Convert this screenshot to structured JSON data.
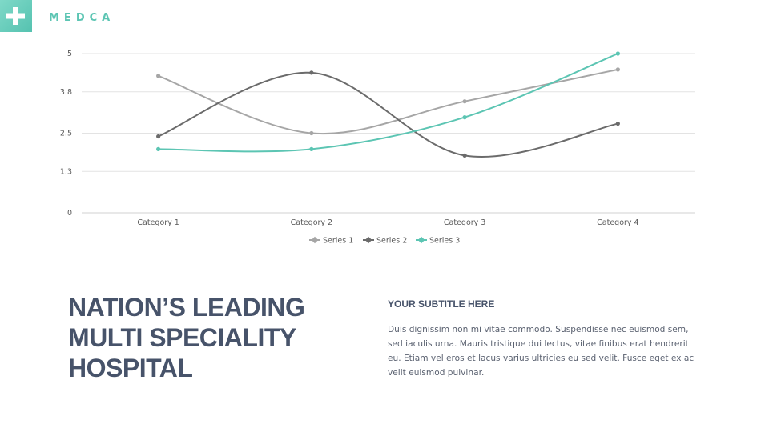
{
  "brand": {
    "name": "MEDCA",
    "logo_icon": "plus-cross-icon",
    "logo_color": "#5cc5b3"
  },
  "chart_data": {
    "type": "line",
    "categories": [
      "Category 1",
      "Category 2",
      "Category 3",
      "Category 4"
    ],
    "series": [
      {
        "name": "Series 1",
        "values": [
          4.3,
          2.5,
          3.5,
          4.5
        ],
        "color": "#a6a6a6"
      },
      {
        "name": "Series 2",
        "values": [
          2.4,
          4.4,
          1.8,
          2.8
        ],
        "color": "#6b6b6b"
      },
      {
        "name": "Series 3",
        "values": [
          2.0,
          2.0,
          3.0,
          5.0
        ],
        "color": "#5cc5b3"
      }
    ],
    "y_ticks": [
      "0",
      "1.3",
      "2.5",
      "3.8",
      "5"
    ],
    "ylim": [
      0,
      5
    ],
    "grid": true,
    "smooth": true,
    "legend_position": "bottom",
    "title": "",
    "xlabel": "",
    "ylabel": ""
  },
  "headline": {
    "lines": [
      "NATION’S LEADING",
      "MULTI SPECIALITY",
      "HOSPITAL"
    ]
  },
  "subtitle": "YOUR SUBTITLE HERE",
  "body": "Duis dignissim non mi vitae commodo. Suspendisse nec euismod sem, sed iaculis urna. Mauris tristique dui lectus, vitae finibus erat hendrerit eu. Etiam vel eros et lacus varius ultricies eu sed velit. Fusce eget ex ac velit euismod pulvinar."
}
